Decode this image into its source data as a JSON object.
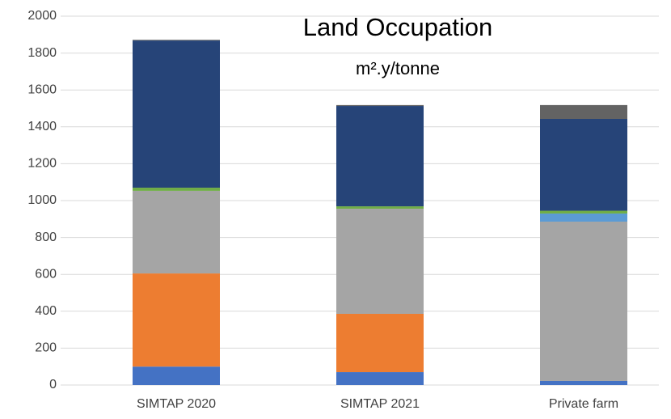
{
  "chart_data": {
    "type": "bar",
    "stacked": true,
    "title": "Land Occupation",
    "subtitle": "m².y/tonne",
    "categories": [
      "SIMTAP 2020",
      "SIMTAP 2021",
      "Private farm"
    ],
    "series": [
      {
        "color": "#4472c4",
        "values": [
          100,
          70,
          22
        ]
      },
      {
        "color": "#ed7d31",
        "values": [
          505,
          316,
          0
        ]
      },
      {
        "color": "#a5a5a5",
        "values": [
          448,
          570,
          864
        ]
      },
      {
        "color": "#5b9bd5",
        "values": [
          0,
          0,
          44
        ]
      },
      {
        "color": "#70ad47",
        "values": [
          17,
          13,
          15
        ]
      },
      {
        "color": "#264478",
        "values": [
          798,
          544,
          498
        ]
      },
      {
        "color": "#636363",
        "values": [
          4,
          5,
          75
        ]
      }
    ],
    "ylim": [
      0,
      2000
    ],
    "yticks": [
      0,
      200,
      400,
      600,
      800,
      1000,
      1200,
      1400,
      1600,
      1800,
      2000
    ],
    "grid": true
  }
}
